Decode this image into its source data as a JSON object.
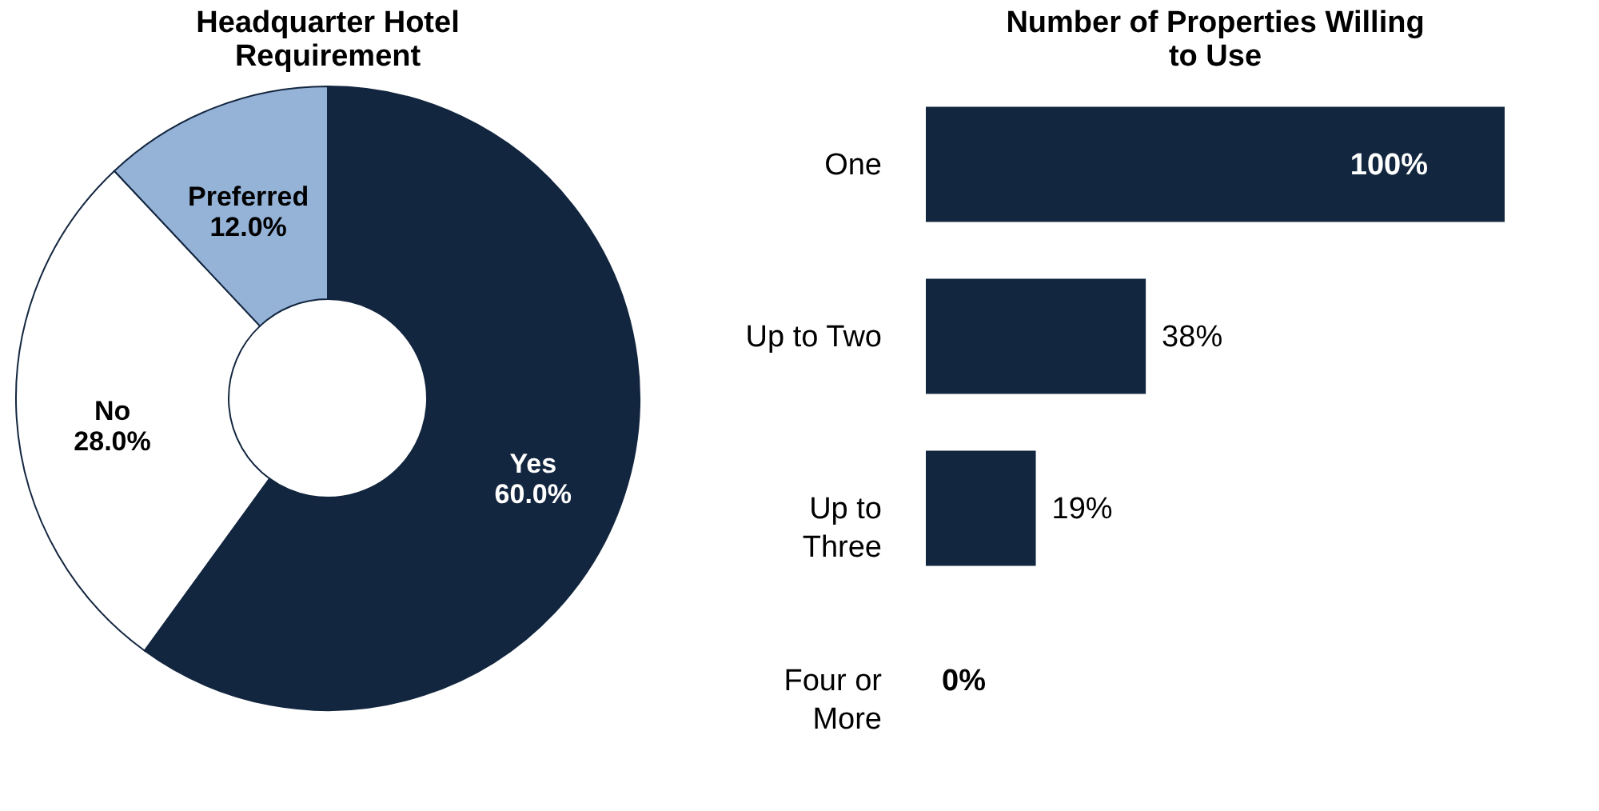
{
  "chart_data": [
    {
      "type": "donut",
      "title": "Headquarter Hotel\nRequirement",
      "categories": [
        "Yes",
        "No",
        "Preferred"
      ],
      "values": [
        60,
        28,
        12
      ],
      "colors": [
        "#13263f",
        "#ffffff",
        "#95b3d7"
      ],
      "value_labels": [
        "60.0%",
        "28.0%",
        "12.0%"
      ],
      "legend": false
    },
    {
      "type": "bar",
      "orientation": "horizontal",
      "title": "Number of Properties Willing\nto Use",
      "categories": [
        "One",
        "Up to Two",
        "Up to\nThree",
        "Four or\nMore"
      ],
      "values": [
        100,
        38,
        19,
        0
      ],
      "color": "#13263f",
      "value_labels": [
        "100%",
        "38%",
        "19%",
        "0%"
      ]
    }
  ]
}
